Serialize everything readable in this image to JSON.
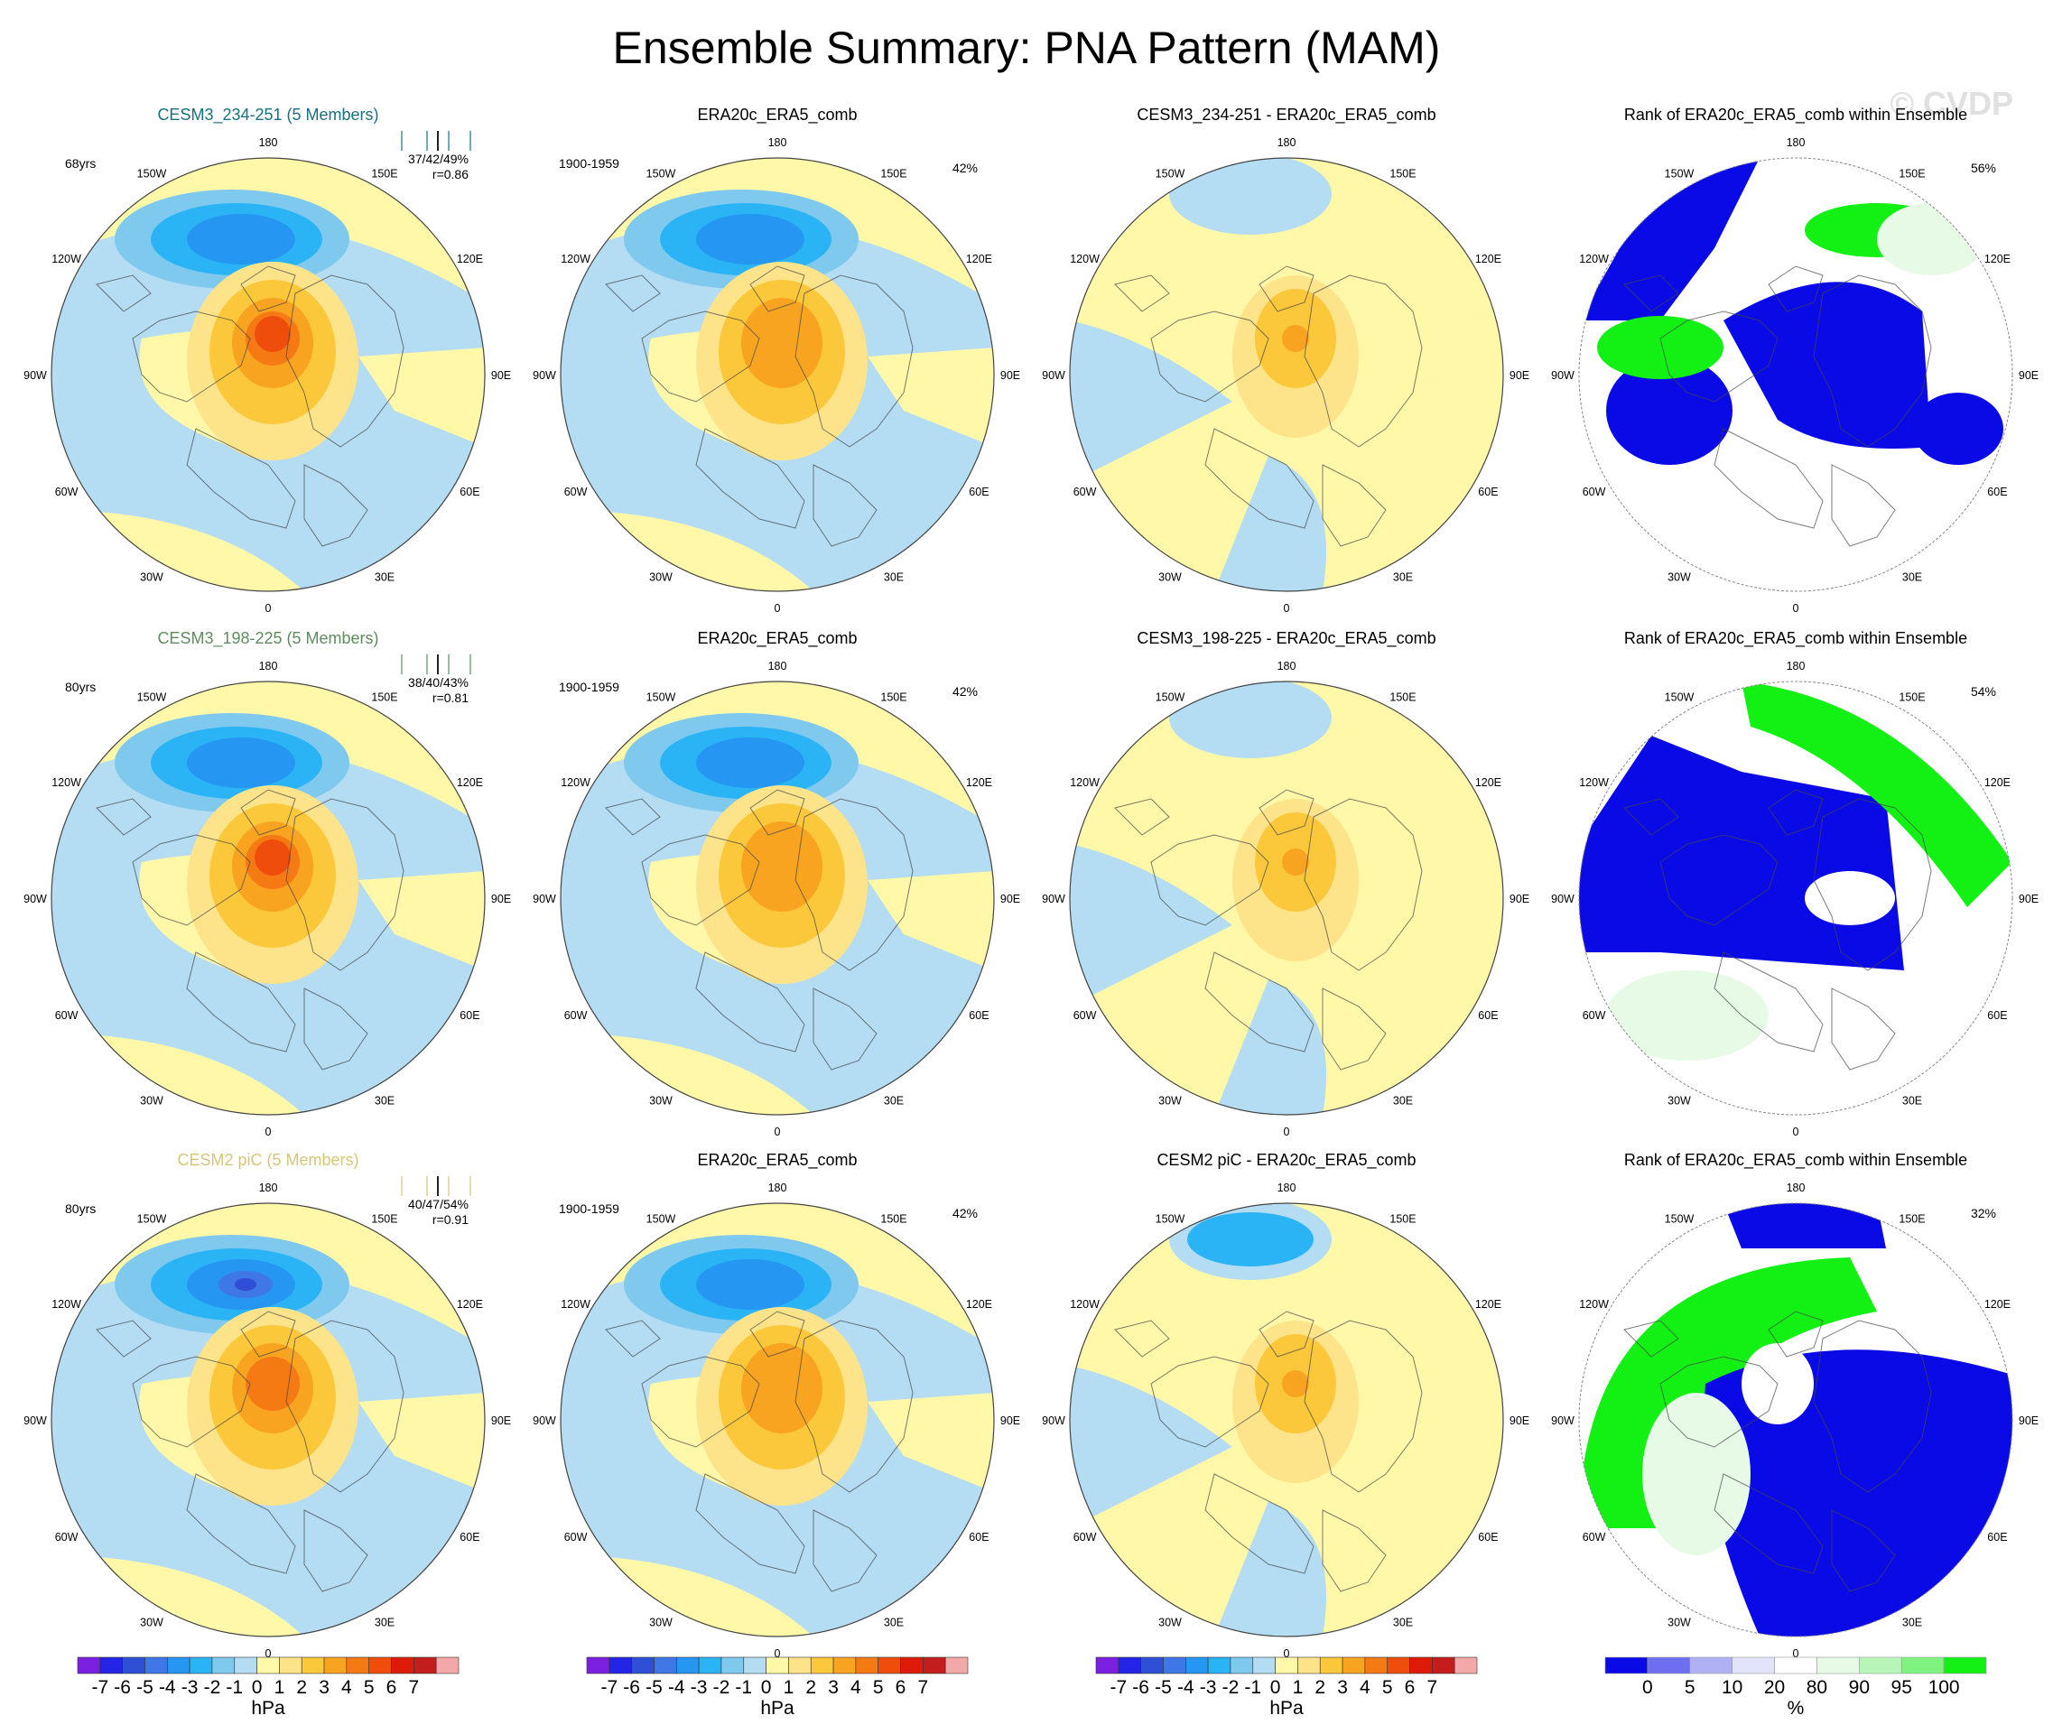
{
  "title": "Ensemble Summary: PNA Pattern (MAM)",
  "watermark": "© CVDP",
  "longitude_labels": [
    "180",
    "150E",
    "120E",
    "90E",
    "60E",
    "30E",
    "0",
    "30W",
    "60W",
    "90W",
    "120W",
    "150W"
  ],
  "rows": [
    {
      "model_title": "CESM3_234-251 (5 Members)",
      "model_color": "#1a6f7f",
      "years": "68yrs",
      "stats": "37/42/49%",
      "corr": "r=0.86",
      "obs_title": "ERA20c_ERA5_comb",
      "obs_period": "1900-1959",
      "obs_pct": "42%",
      "diff_title": "CESM3_234-251 - ERA20c_ERA5_comb",
      "rank_title": "Rank of ERA20c_ERA5_comb within Ensemble",
      "rank_pct": "56%",
      "model_max_hpa": 5.5,
      "model_min_hpa": -3.5
    },
    {
      "model_title": "CESM3_198-225 (5 Members)",
      "model_color": "#5e8c5e",
      "years": "80yrs",
      "stats": "38/40/43%",
      "corr": "r=0.81",
      "obs_title": "ERA20c_ERA5_comb",
      "obs_period": "1900-1959",
      "obs_pct": "42%",
      "diff_title": "CESM3_198-225 - ERA20c_ERA5_comb",
      "rank_title": "Rank of ERA20c_ERA5_comb within Ensemble",
      "rank_pct": "54%",
      "model_max_hpa": 5.5,
      "model_min_hpa": -3.0
    },
    {
      "model_title": "CESM2 piC (5 Members)",
      "model_color": "#d6c67a",
      "years": "80yrs",
      "stats": "40/47/54%",
      "corr": "r=0.91",
      "obs_title": "ERA20c_ERA5_comb",
      "obs_period": "1900-1959",
      "obs_pct": "42%",
      "diff_title": "CESM2 piC - ERA20c_ERA5_comb",
      "rank_title": "Rank of ERA20c_ERA5_comb within Ensemble",
      "rank_pct": "32%",
      "model_max_hpa": 4.5,
      "model_min_hpa": -4.5
    }
  ],
  "chart_data": [
    {
      "type": "heatmap",
      "name": "SLP pattern colorbar",
      "unit": "hPa",
      "tick_labels": [
        "-7",
        "-6",
        "-5",
        "-4",
        "-3",
        "-2",
        "-1",
        "0",
        "1",
        "2",
        "3",
        "4",
        "5",
        "6",
        "7"
      ],
      "colors": [
        "#7b1fe0",
        "#2424e6",
        "#2e4fd6",
        "#3f78e6",
        "#2596f2",
        "#2ab4f5",
        "#7fc9ee",
        "#b4dcf2",
        "#fff8a8",
        "#fde48a",
        "#fbc83c",
        "#f9a421",
        "#f57a14",
        "#ee4d0c",
        "#dd1b09",
        "#c41d1d",
        "#f3a9a9"
      ]
    },
    {
      "type": "heatmap",
      "name": "Rank colorbar",
      "unit": "%",
      "tick_labels": [
        "0",
        "5",
        "10",
        "20",
        "80",
        "90",
        "95",
        "100"
      ],
      "colors": [
        "#0a0ae6",
        "#6e6ef0",
        "#b0b0f5",
        "#e2e2fa",
        "#ffffff",
        "#e6fae6",
        "#b8f5b8",
        "#7ff27f",
        "#13f013"
      ]
    }
  ],
  "colorbar_labels": [
    "-7",
    "-6",
    "-5",
    "-4",
    "-3",
    "-2",
    "-1",
    "0",
    "1",
    "2",
    "3",
    "4",
    "5",
    "6",
    "7"
  ],
  "colorbar_unit": "hPa",
  "rank_labels": [
    "0",
    "5",
    "10",
    "20",
    "80",
    "90",
    "95",
    "100"
  ],
  "rank_unit": "%"
}
